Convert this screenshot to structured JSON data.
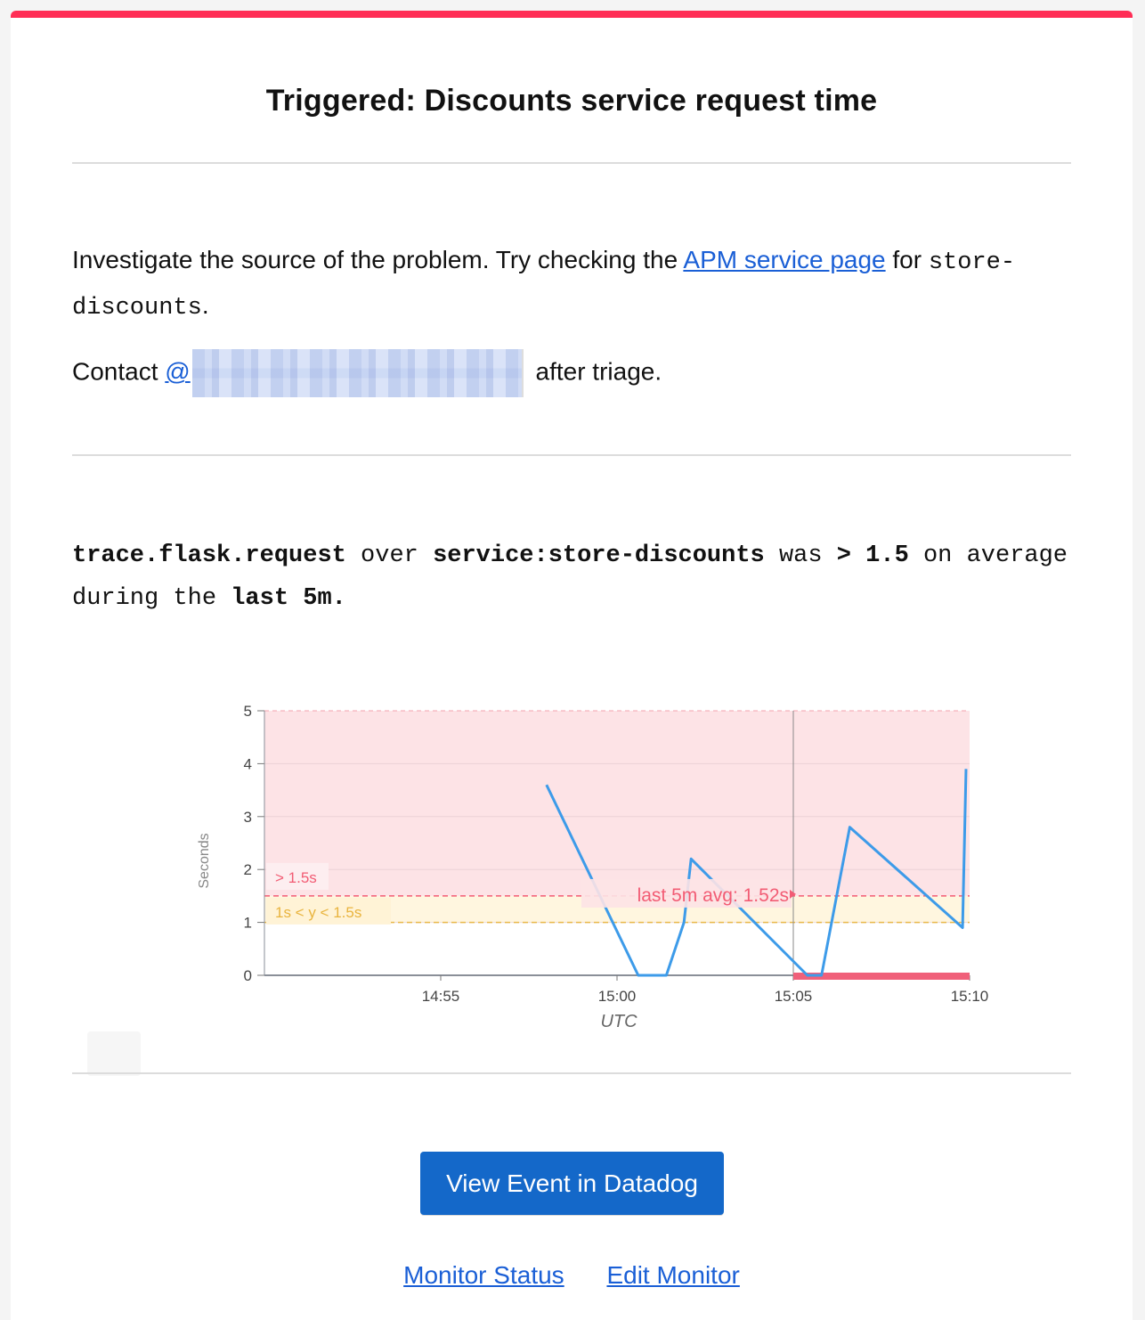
{
  "title": "Triggered: Discounts service request time",
  "message": {
    "line1_before": "Investigate the source of the problem. Try checking the ",
    "apm_link": "APM service page",
    "line1_mid": " for ",
    "service_code": "store-discounts",
    "line1_end": ".",
    "contact_prefix": "Contact ",
    "contact_at": "@",
    "contact_suffix": " after triage."
  },
  "query": {
    "metric": "trace.flask.request",
    "over": " over ",
    "scope": "service:store-discounts",
    "was": " was ",
    "condition": "> 1.5",
    "on": " on average during the ",
    "window": "last 5m."
  },
  "chart_data": {
    "type": "line",
    "ylabel": "Seconds",
    "xlabel": "UTC",
    "x_ticks": [
      "14:55",
      "15:00",
      "15:05",
      "15:10"
    ],
    "y_ticks": [
      0,
      1,
      2,
      3,
      4,
      5
    ],
    "ylim": [
      0,
      5
    ],
    "xlim": [
      "14:50",
      "15:10"
    ],
    "thresholds": [
      {
        "label": "> 1.5s",
        "value": 1.5,
        "color": "#f25c74"
      },
      {
        "label": "1s < y < 1.5s",
        "value": 1.0,
        "color": "#f5c242"
      }
    ],
    "marker_label": "last 5m avg: 1.52s",
    "marker_time": "15:05",
    "series": [
      {
        "x": [
          "14:58:00",
          "15:00:36",
          "15:01:24",
          "15:01:54",
          "15:02:06",
          "15:05:24",
          "15:05:48",
          "15:06:36",
          "15:09:48",
          "15:09:54"
        ],
        "y": [
          3.6,
          0,
          0,
          1.0,
          2.2,
          0,
          0,
          2.8,
          0.9,
          3.9
        ],
        "color": "#3d9be9"
      }
    ]
  },
  "actions": {
    "view_event": "View Event in Datadog",
    "monitor_status": "Monitor Status",
    "edit_monitor": "Edit Monitor"
  },
  "colors": {
    "accent": "#ff2d55",
    "button": "#1468c9",
    "link": "#1a5fd6"
  }
}
